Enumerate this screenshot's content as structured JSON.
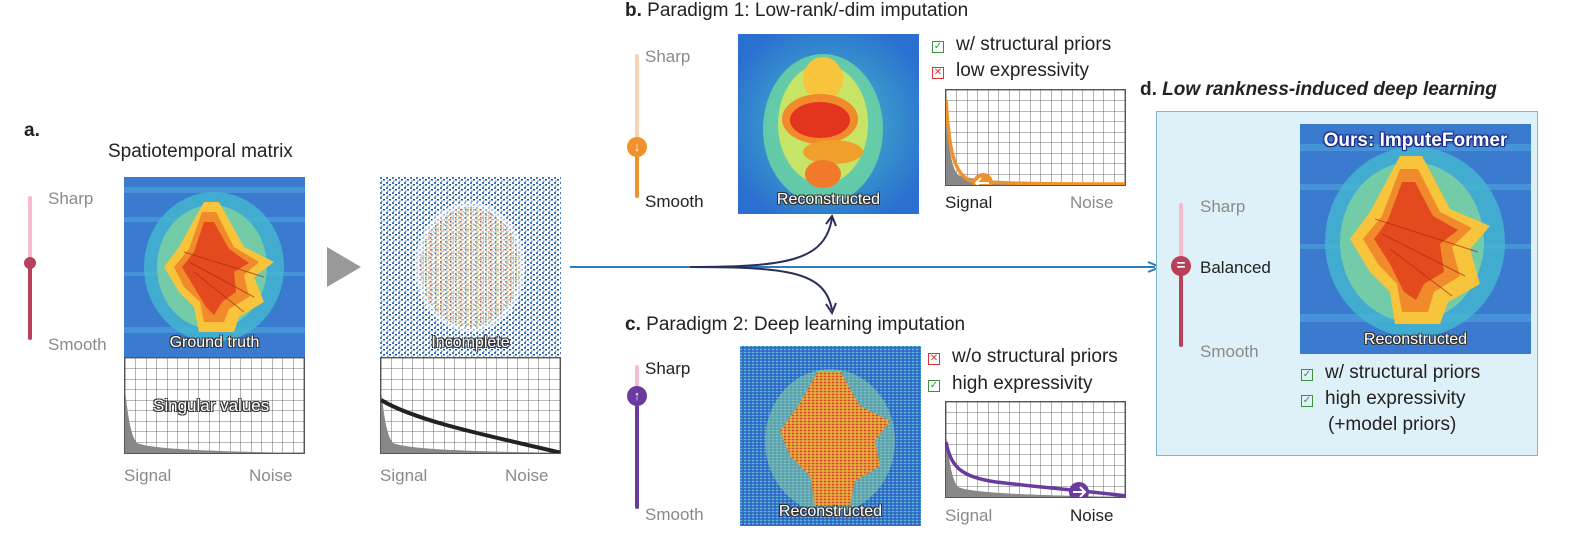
{
  "panel_a": {
    "letter": "a.",
    "title": "Spatiotemporal matrix",
    "slider_top": "Sharp",
    "slider_bottom": "Smooth",
    "gt_label": "Ground truth",
    "incomplete_label": "Incomplete",
    "sv_label": "Singular values",
    "signal": "Signal",
    "noise": "Noise",
    "signal2": "Signal",
    "noise2": "Noise"
  },
  "panel_b": {
    "letter": "b.",
    "title": "Paradigm 1: Low-rank/-dim imputation",
    "slider_top": "Sharp",
    "slider_bottom": "Smooth",
    "recon_label": "Reconstructed",
    "check1": "w/ structural priors",
    "check2": "low expressivity",
    "signal": "Signal",
    "noise": "Noise"
  },
  "panel_c": {
    "letter": "c.",
    "title": "Paradigm 2: Deep learning imputation",
    "slider_top": "Sharp",
    "slider_bottom": "Smooth",
    "recon_label": "Reconstructed",
    "check1": "w/o structural priors",
    "check2": "high expressivity",
    "signal": "Signal",
    "noise": "Noise"
  },
  "panel_d": {
    "letter": "d.",
    "title": "Low rankness-induced deep learning",
    "slider_top": "Sharp",
    "slider_mid": "Balanced",
    "slider_bottom": "Smooth",
    "ours_label": "Ours: ImputeFormer",
    "recon_label": "Reconstructed",
    "check1": "w/ structural priors",
    "check2": "high expressivity",
    "check3": "(+model priors)"
  },
  "colors": {
    "smooth_slider": "#b8405a",
    "sharp_slider": "#f5bccb",
    "orange": "#f0922b",
    "purple": "#6b3a9e",
    "arrow": "#2f7bbf",
    "panel_bg": "#dff1f8"
  }
}
